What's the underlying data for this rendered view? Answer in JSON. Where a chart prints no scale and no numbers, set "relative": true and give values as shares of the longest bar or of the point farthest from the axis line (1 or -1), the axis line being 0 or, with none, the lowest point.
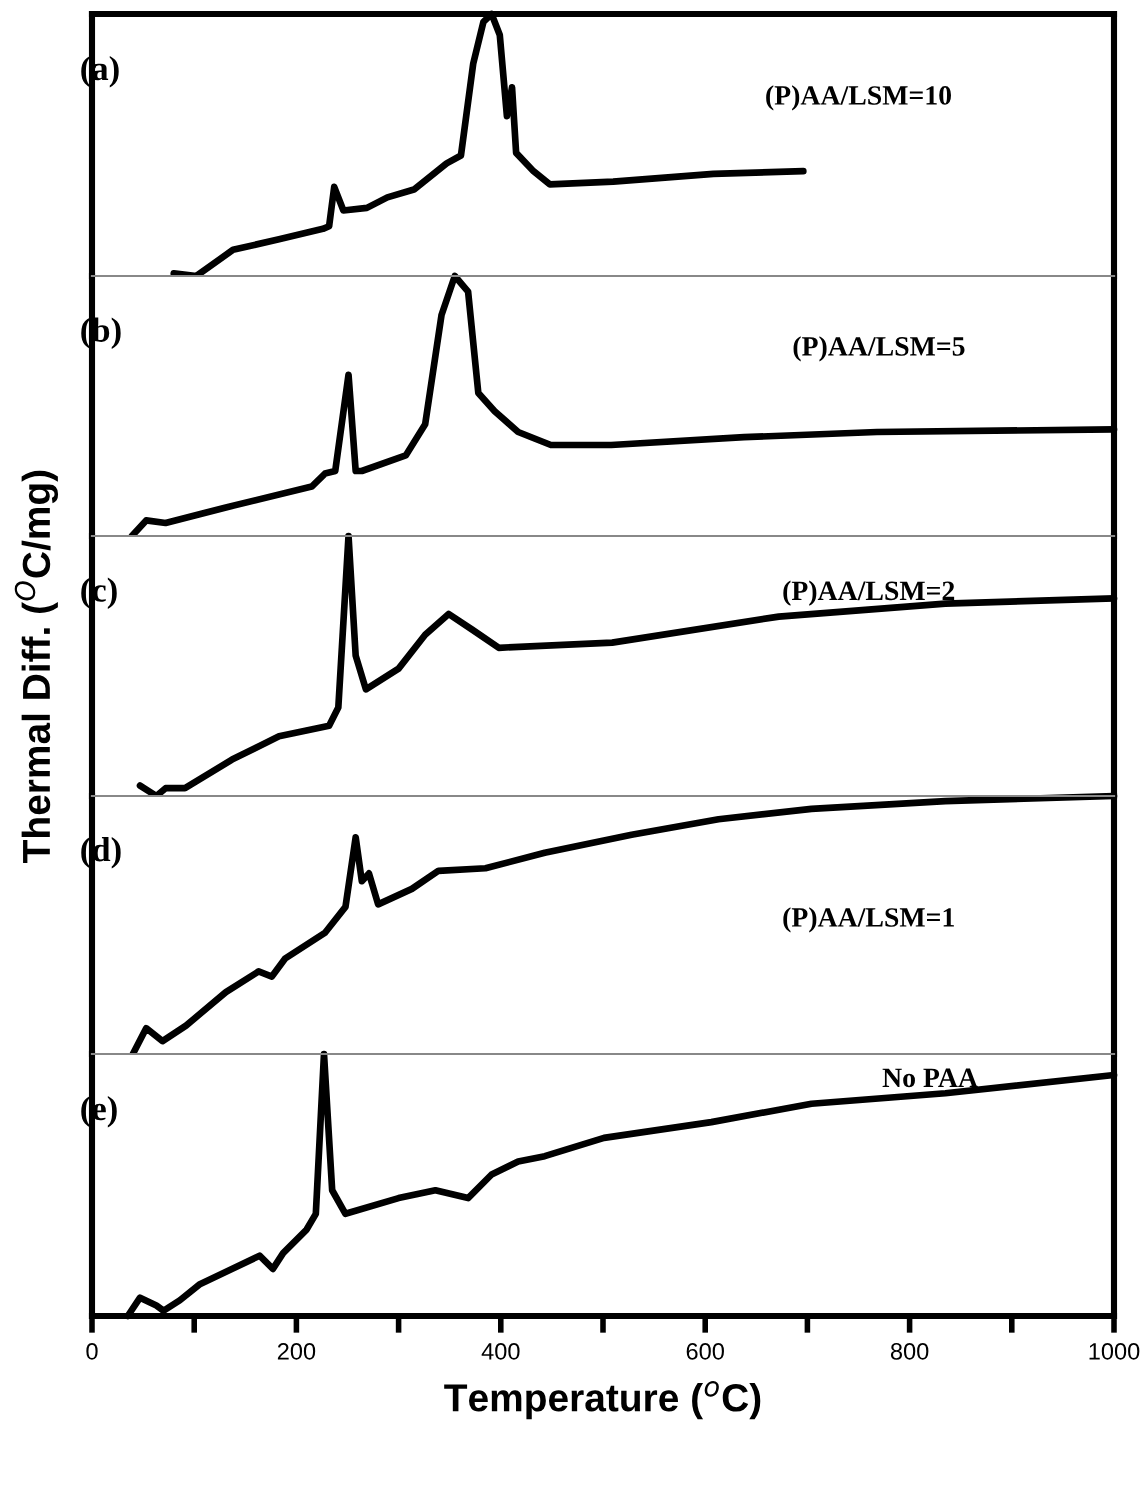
{
  "chart_data": [
    {
      "type": "line",
      "relative": true,
      "xlim": [
        0,
        1000
      ],
      "tick_labels": false,
      "annotations": [
        "(a)",
        "(P)AA/LSM=10"
      ],
      "series": [
        {
          "color": "#000000",
          "x": [
            80,
            102,
            138,
            183,
            226,
            232,
            237,
            246,
            269,
            289,
            315,
            347,
            361,
            373,
            383,
            391,
            399,
            406,
            411,
            415,
            432,
            448,
            510,
            608,
            696
          ],
          "values": [
            0.01,
            0,
            0.1,
            0.14,
            0.18,
            0.19,
            0.34,
            0.25,
            0.26,
            0.3,
            0.33,
            0.43,
            0.46,
            0.81,
            0.97,
            1.0,
            0.92,
            0.61,
            0.72,
            0.47,
            0.4,
            0.35,
            0.36,
            0.39,
            0.4
          ]
        }
      ]
    },
    {
      "type": "line",
      "relative": true,
      "xlim": [
        0,
        1000
      ],
      "tick_labels": false,
      "annotations": [
        "(b)",
        "(P)AA/LSM=5"
      ],
      "series": [
        {
          "color": "#000000",
          "x": [
            39,
            53,
            72,
            131,
            215,
            228,
            238,
            251,
            258,
            264,
            307,
            326,
            342,
            355,
            368,
            378,
            394,
            417,
            449,
            508,
            638,
            768,
            1000
          ],
          "values": [
            0,
            0.06,
            0.05,
            0.11,
            0.19,
            0.24,
            0.25,
            0.62,
            0.25,
            0.25,
            0.31,
            0.43,
            0.85,
            1.0,
            0.94,
            0.55,
            0.48,
            0.4,
            0.35,
            0.35,
            0.38,
            0.4,
            0.41
          ]
        }
      ]
    },
    {
      "type": "line",
      "relative": true,
      "xlim": [
        0,
        1000
      ],
      "tick_labels": false,
      "ylabel": "Thermal Diff. ($^{O}$C/mg)",
      "annotations": [
        "(c)",
        "(P)AA/LSM=2"
      ],
      "series": [
        {
          "color": "#000000",
          "x": [
            47,
            63,
            72,
            91,
            137,
            183,
            232,
            241,
            251,
            258,
            268,
            300,
            326,
            349,
            372,
            398,
            509,
            672,
            835,
            1000
          ],
          "values": [
            0.04,
            0,
            0.03,
            0.03,
            0.14,
            0.23,
            0.27,
            0.34,
            1.0,
            0.54,
            0.41,
            0.49,
            0.62,
            0.7,
            0.64,
            0.57,
            0.59,
            0.69,
            0.74,
            0.76
          ]
        }
      ]
    },
    {
      "type": "line",
      "relative": true,
      "xlim": [
        0,
        1000
      ],
      "tick_labels": false,
      "annotations": [
        "(d)",
        "(P)AA/LSM=1"
      ],
      "series": [
        {
          "color": "#000000",
          "x": [
            40,
            53,
            69,
            92,
            131,
            163,
            176,
            189,
            228,
            248,
            258,
            264,
            271,
            280,
            313,
            339,
            385,
            443,
            528,
            613,
            704,
            835,
            1000
          ],
          "values": [
            0,
            0.1,
            0.05,
            0.11,
            0.24,
            0.32,
            0.3,
            0.37,
            0.47,
            0.57,
            0.84,
            0.67,
            0.7,
            0.58,
            0.64,
            0.71,
            0.72,
            0.78,
            0.85,
            0.91,
            0.95,
            0.98,
            1.0
          ]
        }
      ]
    },
    {
      "type": "line",
      "relative": true,
      "xlim": [
        0,
        1000
      ],
      "tick_labels": "x",
      "xlabel": "Temperature ($^{o}$C)",
      "annotations": [
        "(e)",
        "No PAA"
      ],
      "xticks": [
        0,
        {
          "value": 100,
          "label": null
        },
        200,
        {
          "value": 300,
          "label": null
        },
        400,
        {
          "value": 500,
          "label": null
        },
        600,
        {
          "value": 700,
          "label": null
        },
        800,
        {
          "value": 900,
          "label": null
        },
        1000
      ],
      "series": [
        {
          "color": "#000000",
          "x": [
            35,
            47,
            63,
            70,
            86,
            105,
            164,
            177,
            187,
            210,
            219,
            227,
            235,
            248,
            300,
            336,
            368,
            391,
            417,
            443,
            501,
            606,
            704,
            835,
            1000
          ],
          "values": [
            0,
            0.07,
            0.04,
            0.02,
            0.06,
            0.12,
            0.23,
            0.18,
            0.24,
            0.33,
            0.39,
            1.0,
            0.48,
            0.39,
            0.45,
            0.48,
            0.45,
            0.54,
            0.59,
            0.61,
            0.68,
            0.74,
            0.81,
            0.85,
            0.92
          ]
        }
      ]
    }
  ]
}
